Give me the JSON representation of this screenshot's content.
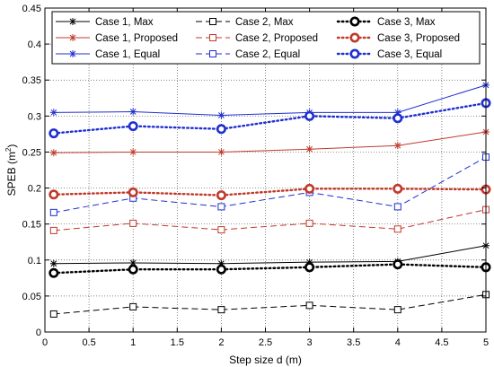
{
  "chart_data": {
    "type": "line",
    "xlabel": "Step size d (m)",
    "ylabel_main": "SPEB (m",
    "ylabel_sup": "2",
    "ylabel_close": ")",
    "xlim": [
      0,
      5
    ],
    "ylim": [
      0,
      0.45
    ],
    "xticks": [
      "0",
      "0.5",
      "1",
      "1.5",
      "2",
      "2.5",
      "3",
      "3.5",
      "4",
      "4.5",
      "5"
    ],
    "yticks": [
      "0",
      "0.05",
      "0.1",
      "0.15",
      "0.2",
      "0.25",
      "0.3",
      "0.35",
      "0.4",
      "0.45"
    ],
    "grid": true,
    "legend_position": "top",
    "x": [
      0.1,
      1,
      2,
      3,
      4,
      5
    ],
    "series": [
      {
        "name": "Case 1, Max",
        "color": "#000000",
        "dash": "solid",
        "marker": "star",
        "values": [
          0.095,
          0.096,
          0.095,
          0.097,
          0.098,
          0.12
        ]
      },
      {
        "name": "Case 1, Proposed",
        "color": "#c0392b",
        "dash": "solid",
        "marker": "star",
        "values": [
          0.249,
          0.25,
          0.25,
          0.254,
          0.259,
          0.278
        ]
      },
      {
        "name": "Case 1, Equal",
        "color": "#1f2fd0",
        "dash": "solid",
        "marker": "star",
        "values": [
          0.305,
          0.306,
          0.301,
          0.305,
          0.305,
          0.343
        ]
      },
      {
        "name": "Case 2, Max",
        "color": "#000000",
        "dash": "dashed",
        "marker": "square",
        "values": [
          0.025,
          0.035,
          0.031,
          0.037,
          0.031,
          0.052
        ]
      },
      {
        "name": "Case 2, Proposed",
        "color": "#c0392b",
        "dash": "dashed",
        "marker": "square",
        "values": [
          0.141,
          0.151,
          0.142,
          0.151,
          0.143,
          0.17
        ]
      },
      {
        "name": "Case 2, Equal",
        "color": "#1f2fd0",
        "dash": "dashed",
        "marker": "square",
        "values": [
          0.166,
          0.186,
          0.174,
          0.194,
          0.174,
          0.243
        ]
      },
      {
        "name": "Case 3, Max",
        "color": "#000000",
        "dash": "dotted",
        "marker": "circle",
        "values": [
          0.082,
          0.087,
          0.087,
          0.09,
          0.094,
          0.09
        ]
      },
      {
        "name": "Case 3, Proposed",
        "color": "#c0392b",
        "dash": "dotted",
        "marker": "circle",
        "values": [
          0.191,
          0.194,
          0.19,
          0.199,
          0.199,
          0.198
        ]
      },
      {
        "name": "Case 3, Equal",
        "color": "#1f2fd0",
        "dash": "dotted",
        "marker": "circle",
        "values": [
          0.276,
          0.286,
          0.282,
          0.3,
          0.297,
          0.318
        ]
      }
    ]
  }
}
